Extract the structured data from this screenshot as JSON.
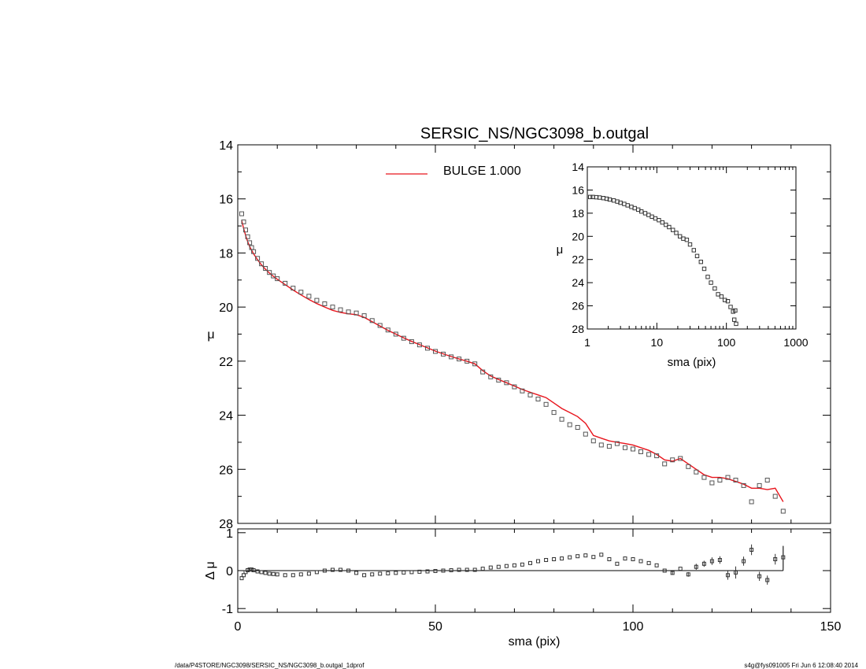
{
  "footer": {
    "left": "/data/P4STORE/NGC3098/SERSIC_NS/NGC3098_b.outgal_1dprof",
    "right": "s4g@fys091005  Fri Jun  6 12:08:40 2014"
  },
  "colors": {
    "model": "#e8141c",
    "data": "#555555",
    "axes": "#000000",
    "background": "#ffffff"
  },
  "chart_data": [
    {
      "id": "main",
      "type": "scatter",
      "title": "SERSIC_NS/NGC3098_b.outgal",
      "xlabel": "",
      "ylabel": "μ",
      "xlim": [
        0,
        150
      ],
      "ylim": [
        28,
        14
      ],
      "y_inverted": true,
      "xticks": [],
      "yticks": [
        14,
        16,
        18,
        20,
        22,
        24,
        26,
        28
      ],
      "legend": {
        "placement": "top-center",
        "entries": [
          {
            "label": "BULGE  1.000",
            "color": "#e8141c"
          }
        ]
      },
      "series": [
        {
          "name": "data",
          "kind": "points",
          "marker": "square",
          "x": [
            1.0,
            1.5,
            2.0,
            2.5,
            3.0,
            3.5,
            4.0,
            5.0,
            6.0,
            7.0,
            8.0,
            9.0,
            10.0,
            12.0,
            14.0,
            16.0,
            18.0,
            20.0,
            22.0,
            24.0,
            26.0,
            28.0,
            30.0,
            32.0,
            34.0,
            36.0,
            38.0,
            40.0,
            42.0,
            44.0,
            46.0,
            48.0,
            50.0,
            52.0,
            54.0,
            56.0,
            58.0,
            60.0,
            62.0,
            64.0,
            66.0,
            68.0,
            70.0,
            72.0,
            74.0,
            76.0,
            78.0,
            80.0,
            82.0,
            84.0,
            86.0,
            88.0,
            90.0,
            92.0,
            94.0,
            96.0,
            98.0,
            100.0,
            102.0,
            104.0,
            106.0,
            108.0,
            110.0,
            112.0,
            114.0,
            116.0,
            118.0,
            120.0,
            122.0,
            124.0,
            126.0,
            128.0,
            130.0,
            132.0,
            134.0,
            136.0,
            138.0
          ],
          "y": [
            16.55,
            16.85,
            17.15,
            17.4,
            17.62,
            17.8,
            17.95,
            18.2,
            18.4,
            18.57,
            18.72,
            18.85,
            18.95,
            19.12,
            19.3,
            19.45,
            19.6,
            19.75,
            19.88,
            20.0,
            20.1,
            20.18,
            20.22,
            20.32,
            20.5,
            20.68,
            20.85,
            21.0,
            21.15,
            21.28,
            21.4,
            21.52,
            21.64,
            21.74,
            21.84,
            21.92,
            22.0,
            22.1,
            22.4,
            22.58,
            22.7,
            22.8,
            22.95,
            23.1,
            23.25,
            23.4,
            23.6,
            23.9,
            24.15,
            24.35,
            24.45,
            24.7,
            24.95,
            25.1,
            25.15,
            25.05,
            25.2,
            25.25,
            25.35,
            25.45,
            25.5,
            25.8,
            25.65,
            25.6,
            25.9,
            26.1,
            26.3,
            26.5,
            26.4,
            26.3,
            26.4,
            26.6,
            27.2,
            26.6,
            26.4,
            27.0,
            27.55
          ]
        },
        {
          "name": "BULGE  1.000",
          "kind": "line",
          "x": [
            1.0,
            1.5,
            2.0,
            2.5,
            3.0,
            3.5,
            4.0,
            5.0,
            6.0,
            7.0,
            8.0,
            9.0,
            10.0,
            12.0,
            14.0,
            16.0,
            18.0,
            20.0,
            22.0,
            24.0,
            26.0,
            28.0,
            30.0,
            32.0,
            34.0,
            36.0,
            38.0,
            40.0,
            42.0,
            44.0,
            46.0,
            48.0,
            50.0,
            52.0,
            54.0,
            56.0,
            58.0,
            60.0,
            62.0,
            64.0,
            66.0,
            68.0,
            70.0,
            72.0,
            74.0,
            76.0,
            78.0,
            80.0,
            82.0,
            84.0,
            86.0,
            88.0,
            90.0,
            92.0,
            94.0,
            96.0,
            98.0,
            100.0,
            102.0,
            104.0,
            106.0,
            108.0,
            110.0,
            112.0,
            114.0,
            116.0,
            118.0,
            120.0,
            122.0,
            124.0,
            126.0,
            128.0,
            130.0,
            132.0,
            134.0,
            136.0,
            138.0
          ],
          "y": [
            16.8,
            17.1,
            17.35,
            17.58,
            17.76,
            17.9,
            18.03,
            18.25,
            18.44,
            18.6,
            18.74,
            18.86,
            18.97,
            19.17,
            19.37,
            19.55,
            19.72,
            19.87,
            20.0,
            20.12,
            20.2,
            20.25,
            20.28,
            20.38,
            20.54,
            20.7,
            20.86,
            21.0,
            21.14,
            21.27,
            21.39,
            21.51,
            21.63,
            21.73,
            21.83,
            21.92,
            22.0,
            22.1,
            22.35,
            22.55,
            22.68,
            22.8,
            22.92,
            23.05,
            23.15,
            23.25,
            23.35,
            23.55,
            23.75,
            23.9,
            24.05,
            24.3,
            24.75,
            24.85,
            24.95,
            25.0,
            25.05,
            25.1,
            25.2,
            25.3,
            25.45,
            25.65,
            25.7,
            25.6,
            25.8,
            26.0,
            26.2,
            26.3,
            26.3,
            26.35,
            26.45,
            26.55,
            26.7,
            26.7,
            26.75,
            26.7,
            27.2
          ]
        }
      ]
    },
    {
      "id": "inset",
      "type": "scatter",
      "xlabel": "sma (pix)",
      "ylabel": "μ",
      "x_scale": "log",
      "xlim": [
        1,
        1000
      ],
      "ylim": [
        28,
        14
      ],
      "y_inverted": true,
      "xticks": [
        "1",
        "10",
        "100",
        "1000"
      ],
      "yticks": [
        14,
        16,
        18,
        20,
        22,
        24,
        26,
        28
      ],
      "series": [
        {
          "name": "data",
          "kind": "points",
          "marker": "square",
          "x": [
            1.1,
            1.2,
            1.35,
            1.5,
            1.7,
            1.9,
            2.1,
            2.4,
            2.7,
            3.0,
            3.4,
            3.8,
            4.3,
            4.8,
            5.4,
            6.0,
            6.8,
            7.6,
            8.5,
            9.5,
            10.7,
            12.0,
            13.5,
            15.0,
            17.0,
            19.0,
            21.5,
            24.0,
            27.0,
            30.0,
            34.0,
            38.0,
            43.0,
            48.0,
            54.0,
            60.0,
            68.0,
            76.0,
            85.0,
            95.0,
            105.0,
            115.0,
            125.0,
            130.0,
            134.0,
            138.0
          ],
          "y": [
            16.6,
            16.6,
            16.62,
            16.65,
            16.7,
            16.75,
            16.82,
            16.9,
            17.0,
            17.1,
            17.2,
            17.32,
            17.45,
            17.57,
            17.7,
            17.85,
            18.0,
            18.15,
            18.3,
            18.45,
            18.6,
            18.8,
            19.0,
            19.2,
            19.45,
            19.7,
            20.0,
            20.2,
            20.3,
            20.7,
            21.2,
            21.7,
            22.2,
            22.8,
            23.5,
            24.0,
            24.5,
            25.0,
            25.2,
            25.5,
            25.6,
            26.1,
            26.5,
            27.2,
            26.4,
            27.55
          ]
        }
      ]
    },
    {
      "id": "residual",
      "type": "scatter",
      "xlabel": "sma (pix)",
      "ylabel": "Δ μ",
      "xlim": [
        0,
        150
      ],
      "ylim": [
        -1.1,
        1.1
      ],
      "xticks": [
        0,
        50,
        100,
        150
      ],
      "yticks": [
        1,
        0,
        -1
      ],
      "series": [
        {
          "name": "residual",
          "kind": "points",
          "marker": "square",
          "x": [
            1.0,
            1.5,
            2.0,
            2.5,
            3.0,
            3.5,
            4.0,
            5.0,
            6.0,
            7.0,
            8.0,
            9.0,
            10.0,
            12.0,
            14.0,
            16.0,
            18.0,
            20.0,
            22.0,
            24.0,
            26.0,
            28.0,
            30.0,
            32.0,
            34.0,
            36.0,
            38.0,
            40.0,
            42.0,
            44.0,
            46.0,
            48.0,
            50.0,
            52.0,
            54.0,
            56.0,
            58.0,
            60.0,
            62.0,
            64.0,
            66.0,
            68.0,
            70.0,
            72.0,
            74.0,
            76.0,
            78.0,
            80.0,
            82.0,
            84.0,
            86.0,
            88.0,
            90.0,
            92.0,
            94.0,
            96.0,
            98.0,
            100.0,
            102.0,
            104.0,
            106.0,
            108.0,
            110.0,
            112.0,
            114.0,
            116.0,
            118.0,
            120.0,
            122.0,
            124.0,
            126.0,
            128.0,
            130.0,
            132.0,
            134.0,
            136.0,
            138.0
          ],
          "y": [
            -0.2,
            -0.12,
            -0.04,
            0.01,
            0.03,
            0.03,
            0.01,
            -0.02,
            -0.04,
            -0.06,
            -0.08,
            -0.09,
            -0.1,
            -0.12,
            -0.12,
            -0.1,
            -0.08,
            -0.04,
            0.0,
            0.02,
            0.02,
            0.0,
            -0.06,
            -0.12,
            -0.1,
            -0.08,
            -0.07,
            -0.06,
            -0.05,
            -0.04,
            -0.03,
            -0.02,
            -0.01,
            0.0,
            0.01,
            0.02,
            0.02,
            0.02,
            0.05,
            0.08,
            0.1,
            0.12,
            0.14,
            0.16,
            0.2,
            0.25,
            0.28,
            0.3,
            0.32,
            0.35,
            0.38,
            0.4,
            0.36,
            0.42,
            0.3,
            0.18,
            0.32,
            0.3,
            0.25,
            0.2,
            0.14,
            0.0,
            -0.06,
            0.05,
            -0.1,
            0.1,
            0.18,
            0.25,
            0.28,
            -0.12,
            -0.05,
            0.25,
            0.55,
            -0.15,
            -0.25,
            0.3,
            0.35
          ],
          "yerr": [
            0.02,
            0.02,
            0.02,
            0.02,
            0.02,
            0.02,
            0.02,
            0.02,
            0.02,
            0.02,
            0.02,
            0.02,
            0.02,
            0.02,
            0.02,
            0.02,
            0.02,
            0.02,
            0.02,
            0.02,
            0.02,
            0.02,
            0.02,
            0.02,
            0.02,
            0.02,
            0.02,
            0.02,
            0.02,
            0.02,
            0.02,
            0.02,
            0.02,
            0.02,
            0.02,
            0.02,
            0.02,
            0.02,
            0.02,
            0.02,
            0.02,
            0.02,
            0.02,
            0.02,
            0.02,
            0.02,
            0.02,
            0.02,
            0.02,
            0.02,
            0.02,
            0.02,
            0.02,
            0.02,
            0.02,
            0.02,
            0.02,
            0.02,
            0.02,
            0.02,
            0.02,
            0.04,
            0.05,
            0.04,
            0.06,
            0.08,
            0.08,
            0.1,
            0.1,
            0.12,
            0.16,
            0.12,
            0.14,
            0.12,
            0.12,
            0.14,
            0.3
          ]
        }
      ]
    }
  ]
}
